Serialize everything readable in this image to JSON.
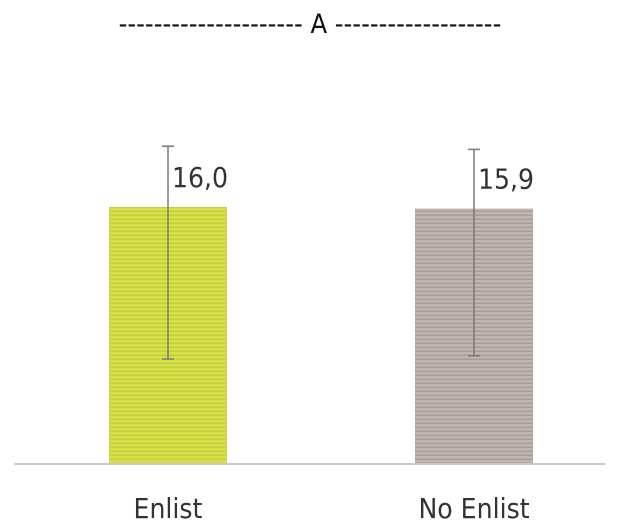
{
  "chart_data": {
    "type": "bar",
    "title": "--------------------- A -------------------",
    "categories": [
      "Enlist",
      "No Enlist"
    ],
    "values": [
      16.0,
      15.9
    ],
    "value_labels": [
      "16,0",
      "15,9"
    ],
    "error_bars": [
      {
        "low": 6.5,
        "high": 19.8
      },
      {
        "low": 6.7,
        "high": 19.6
      }
    ],
    "ylim": [
      0,
      25
    ],
    "colors": [
      "#d6e04a",
      "#b8aca8"
    ],
    "axis_color": "#c8c8c8",
    "grid": false,
    "legend": "none"
  }
}
